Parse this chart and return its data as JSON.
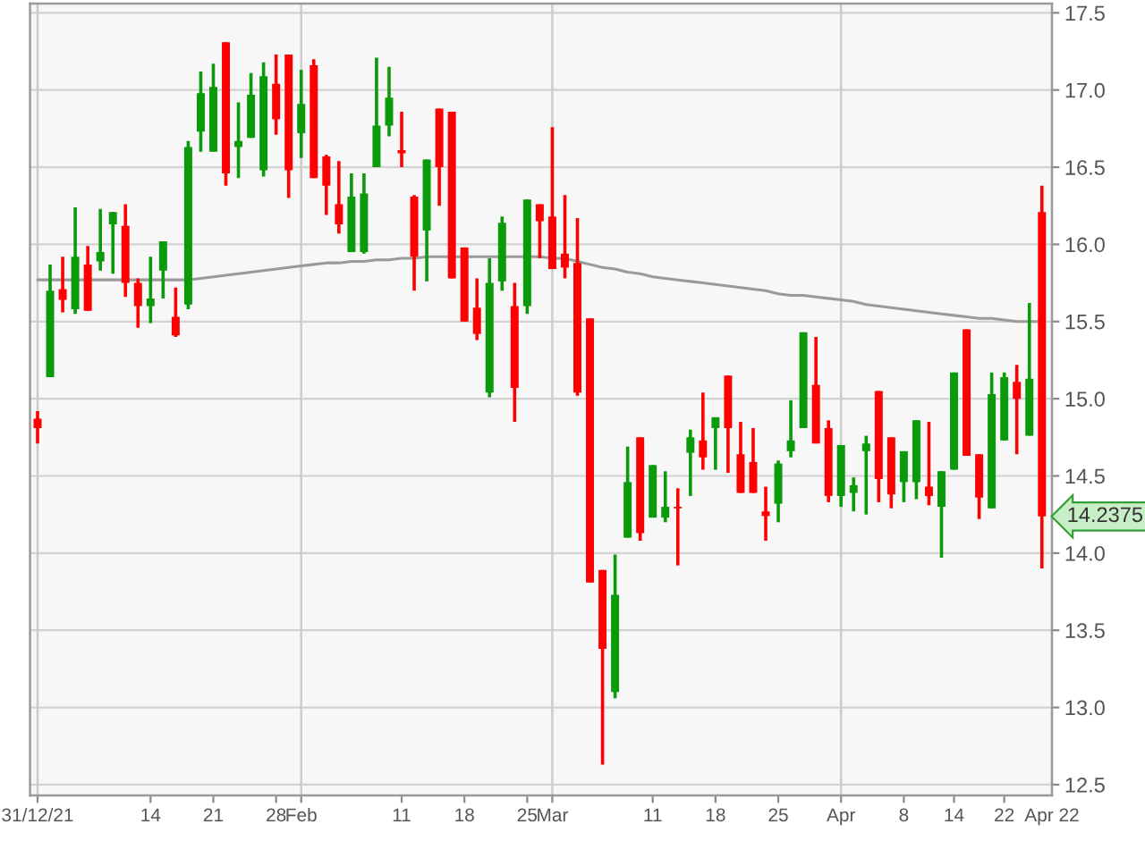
{
  "chart_data": {
    "type": "candlestick",
    "categories": [
      "31/12/21",
      null,
      null,
      null,
      null,
      null,
      null,
      null,
      null,
      "14",
      null,
      null,
      null,
      null,
      "21",
      null,
      null,
      null,
      null,
      "28",
      null,
      "Feb",
      null,
      null,
      null,
      null,
      null,
      null,
      null,
      "11",
      null,
      null,
      null,
      null,
      "18",
      null,
      null,
      null,
      null,
      "25",
      null,
      "Mar",
      null,
      null,
      null,
      null,
      null,
      null,
      null,
      "11",
      null,
      null,
      null,
      null,
      "18",
      null,
      null,
      null,
      null,
      "25",
      null,
      null,
      null,
      null,
      "Apr",
      null,
      null,
      null,
      null,
      "8",
      null,
      null,
      null,
      "14",
      null,
      null,
      null,
      "22",
      null,
      null,
      null
    ],
    "series": [
      {
        "ohlc": [
          [
            14.87,
            14.92,
            14.71,
            14.81
          ],
          [
            15.14,
            15.87,
            15.14,
            15.7
          ],
          [
            15.71,
            15.92,
            15.56,
            15.64
          ],
          [
            15.58,
            16.24,
            15.55,
            15.92
          ],
          [
            15.87,
            15.99,
            15.57,
            15.57
          ],
          [
            15.89,
            16.23,
            15.83,
            15.95
          ],
          [
            16.13,
            16.21,
            15.81,
            16.21
          ],
          [
            16.12,
            16.26,
            15.66,
            15.75
          ],
          [
            15.75,
            15.78,
            15.46,
            15.6
          ],
          [
            15.6,
            15.92,
            15.49,
            15.65
          ],
          [
            15.83,
            16.02,
            15.65,
            16.02
          ],
          [
            15.53,
            15.72,
            15.4,
            15.41
          ],
          [
            15.61,
            16.67,
            15.58,
            16.63
          ],
          [
            16.73,
            17.12,
            16.6,
            16.98
          ],
          [
            16.6,
            17.17,
            16.6,
            17.02
          ],
          [
            17.31,
            17.31,
            16.38,
            16.46
          ],
          [
            16.63,
            16.92,
            16.43,
            16.67
          ],
          [
            16.69,
            17.11,
            16.69,
            16.97
          ],
          [
            16.48,
            17.18,
            16.44,
            17.09
          ],
          [
            17.04,
            17.23,
            16.71,
            16.81
          ],
          [
            17.23,
            17.23,
            16.3,
            16.48
          ],
          [
            16.72,
            17.13,
            16.56,
            16.91
          ],
          [
            17.16,
            17.2,
            16.43,
            16.43
          ],
          [
            16.57,
            16.58,
            16.19,
            16.38
          ],
          [
            16.26,
            16.54,
            16.07,
            16.13
          ],
          [
            15.95,
            16.46,
            15.95,
            16.31
          ],
          [
            15.95,
            16.46,
            15.94,
            16.33
          ],
          [
            16.5,
            17.21,
            16.5,
            16.77
          ],
          [
            16.77,
            17.15,
            16.7,
            16.95
          ],
          [
            16.61,
            16.86,
            16.5,
            16.59
          ],
          [
            16.31,
            16.32,
            15.7,
            15.92
          ],
          [
            16.09,
            16.55,
            15.76,
            16.55
          ],
          [
            16.88,
            16.88,
            16.25,
            16.5
          ],
          [
            16.86,
            16.86,
            15.78,
            15.78
          ],
          [
            15.98,
            15.98,
            15.5,
            15.5
          ],
          [
            15.59,
            15.78,
            15.38,
            15.42
          ],
          [
            15.04,
            15.91,
            15.01,
            15.75
          ],
          [
            15.76,
            16.18,
            15.7,
            16.14
          ],
          [
            15.6,
            15.75,
            14.85,
            15.07
          ],
          [
            15.6,
            16.29,
            15.55,
            16.29
          ],
          [
            16.26,
            16.26,
            15.91,
            16.15
          ],
          [
            16.18,
            16.76,
            15.84,
            15.84
          ],
          [
            15.94,
            16.32,
            15.78,
            15.85
          ],
          [
            15.88,
            16.17,
            15.02,
            15.04
          ],
          [
            15.52,
            15.52,
            13.81,
            13.81
          ],
          [
            13.89,
            13.89,
            12.63,
            13.38
          ],
          [
            13.1,
            13.99,
            13.06,
            13.73
          ],
          [
            14.1,
            14.69,
            14.1,
            14.46
          ],
          [
            14.75,
            14.75,
            14.08,
            14.13
          ],
          [
            14.23,
            14.57,
            14.23,
            14.57
          ],
          [
            14.23,
            14.53,
            14.2,
            14.3
          ],
          [
            14.3,
            14.42,
            13.92,
            14.29
          ],
          [
            14.65,
            14.8,
            14.37,
            14.75
          ],
          [
            14.73,
            15.04,
            14.54,
            14.62
          ],
          [
            14.81,
            14.88,
            14.54,
            14.88
          ],
          [
            15.15,
            15.15,
            14.52,
            14.81
          ],
          [
            14.64,
            14.85,
            14.39,
            14.39
          ],
          [
            14.59,
            14.81,
            14.39,
            14.39
          ],
          [
            14.27,
            14.43,
            14.08,
            14.24
          ],
          [
            14.32,
            14.6,
            14.2,
            14.58
          ],
          [
            14.66,
            14.99,
            14.62,
            14.73
          ],
          [
            14.81,
            15.43,
            14.81,
            15.43
          ],
          [
            15.09,
            15.4,
            14.71,
            14.71
          ],
          [
            14.81,
            14.86,
            14.33,
            14.37
          ],
          [
            14.37,
            14.7,
            14.3,
            14.7
          ],
          [
            14.39,
            14.49,
            14.27,
            14.44
          ],
          [
            14.66,
            14.76,
            14.25,
            14.71
          ],
          [
            15.05,
            15.05,
            14.33,
            14.48
          ],
          [
            14.75,
            14.75,
            14.29,
            14.38
          ],
          [
            14.46,
            14.66,
            14.33,
            14.66
          ],
          [
            14.46,
            14.86,
            14.35,
            14.86
          ],
          [
            14.43,
            14.85,
            14.31,
            14.37
          ],
          [
            14.3,
            14.53,
            13.97,
            14.53
          ],
          [
            14.54,
            15.17,
            14.54,
            15.17
          ],
          [
            15.45,
            15.45,
            14.63,
            14.63
          ],
          [
            14.64,
            14.64,
            14.22,
            14.36
          ],
          [
            14.29,
            15.17,
            14.29,
            15.03
          ],
          [
            14.73,
            15.17,
            14.73,
            15.14
          ],
          [
            15.11,
            15.22,
            14.64,
            15.0
          ],
          [
            14.76,
            15.62,
            14.76,
            15.13
          ],
          [
            16.21,
            16.38,
            13.9,
            14.2375
          ]
        ],
        "colors": [
          "#ff0000",
          "#0a9a0a",
          "#ff0000",
          "#0a9a0a",
          "#ff0000",
          "#0a9a0a",
          "#0a9a0a",
          "#ff0000",
          "#ff0000",
          "#0a9a0a",
          "#0a9a0a",
          "#ff0000",
          "#0a9a0a",
          "#0a9a0a",
          "#0a9a0a",
          "#ff0000",
          "#0a9a0a",
          "#0a9a0a",
          "#0a9a0a",
          "#ff0000",
          "#ff0000",
          "#0a9a0a",
          "#ff0000",
          "#ff0000",
          "#ff0000",
          "#0a9a0a",
          "#0a9a0a",
          "#0a9a0a",
          "#0a9a0a",
          "#ff0000",
          "#ff0000",
          "#0a9a0a",
          "#ff0000",
          "#ff0000",
          "#ff0000",
          "#ff0000",
          "#0a9a0a",
          "#0a9a0a",
          "#ff0000",
          "#0a9a0a",
          "#ff0000",
          "#ff0000",
          "#ff0000",
          "#ff0000",
          "#ff0000",
          "#ff0000",
          "#0a9a0a",
          "#0a9a0a",
          "#ff0000",
          "#0a9a0a",
          "#0a9a0a",
          "#ff0000",
          "#0a9a0a",
          "#ff0000",
          "#0a9a0a",
          "#ff0000",
          "#ff0000",
          "#ff0000",
          "#ff0000",
          "#0a9a0a",
          "#0a9a0a",
          "#0a9a0a",
          "#ff0000",
          "#ff0000",
          "#0a9a0a",
          "#0a9a0a",
          "#0a9a0a",
          "#ff0000",
          "#ff0000",
          "#0a9a0a",
          "#0a9a0a",
          "#ff0000",
          "#0a9a0a",
          "#0a9a0a",
          "#ff0000",
          "#ff0000",
          "#0a9a0a",
          "#0a9a0a",
          "#ff0000",
          "#0a9a0a",
          "#ff0000"
        ]
      },
      {
        "type": "line",
        "color": "#9a9a9a",
        "values": [
          15.77,
          15.77,
          15.77,
          15.77,
          15.77,
          15.77,
          15.77,
          15.77,
          15.77,
          15.77,
          15.77,
          15.77,
          15.77,
          15.78,
          15.79,
          15.8,
          15.81,
          15.82,
          15.83,
          15.84,
          15.85,
          15.86,
          15.87,
          15.88,
          15.88,
          15.89,
          15.89,
          15.9,
          15.9,
          15.91,
          15.91,
          15.92,
          15.92,
          15.92,
          15.92,
          15.92,
          15.92,
          15.92,
          15.92,
          15.92,
          15.92,
          15.91,
          15.91,
          15.89,
          15.87,
          15.85,
          15.84,
          15.82,
          15.81,
          15.79,
          15.78,
          15.77,
          15.76,
          15.75,
          15.74,
          15.73,
          15.72,
          15.71,
          15.7,
          15.68,
          15.67,
          15.67,
          15.66,
          15.65,
          15.64,
          15.63,
          15.61,
          15.6,
          15.59,
          15.58,
          15.57,
          15.56,
          15.55,
          15.54,
          15.53,
          15.52,
          15.52,
          15.51,
          15.5,
          15.5,
          15.5
        ]
      }
    ],
    "ylim": [
      12.43,
      17.56
    ],
    "yticks": [
      12.5,
      {
        "value": 13,
        "label": "13.0"
      },
      13.5,
      {
        "value": 14,
        "label": "14.0"
      },
      14.5,
      {
        "value": 15,
        "label": "15.0"
      },
      15.5,
      {
        "value": 16,
        "label": "16.0"
      },
      16.5,
      {
        "value": 17,
        "label": "17.0"
      },
      17.5
    ],
    "grid": "y",
    "ref_lines": [
      {
        "axis": "x",
        "value": "31/12/21",
        "color": "#cccccc"
      },
      {
        "axis": "x",
        "value": "Feb",
        "color": "#cccccc"
      },
      {
        "axis": "x",
        "value": "Mar",
        "color": "#cccccc"
      },
      {
        "axis": "x",
        "value": "Apr",
        "color": "#cccccc"
      }
    ],
    "annotations": [
      "14.2375",
      "Apr 22"
    ]
  }
}
